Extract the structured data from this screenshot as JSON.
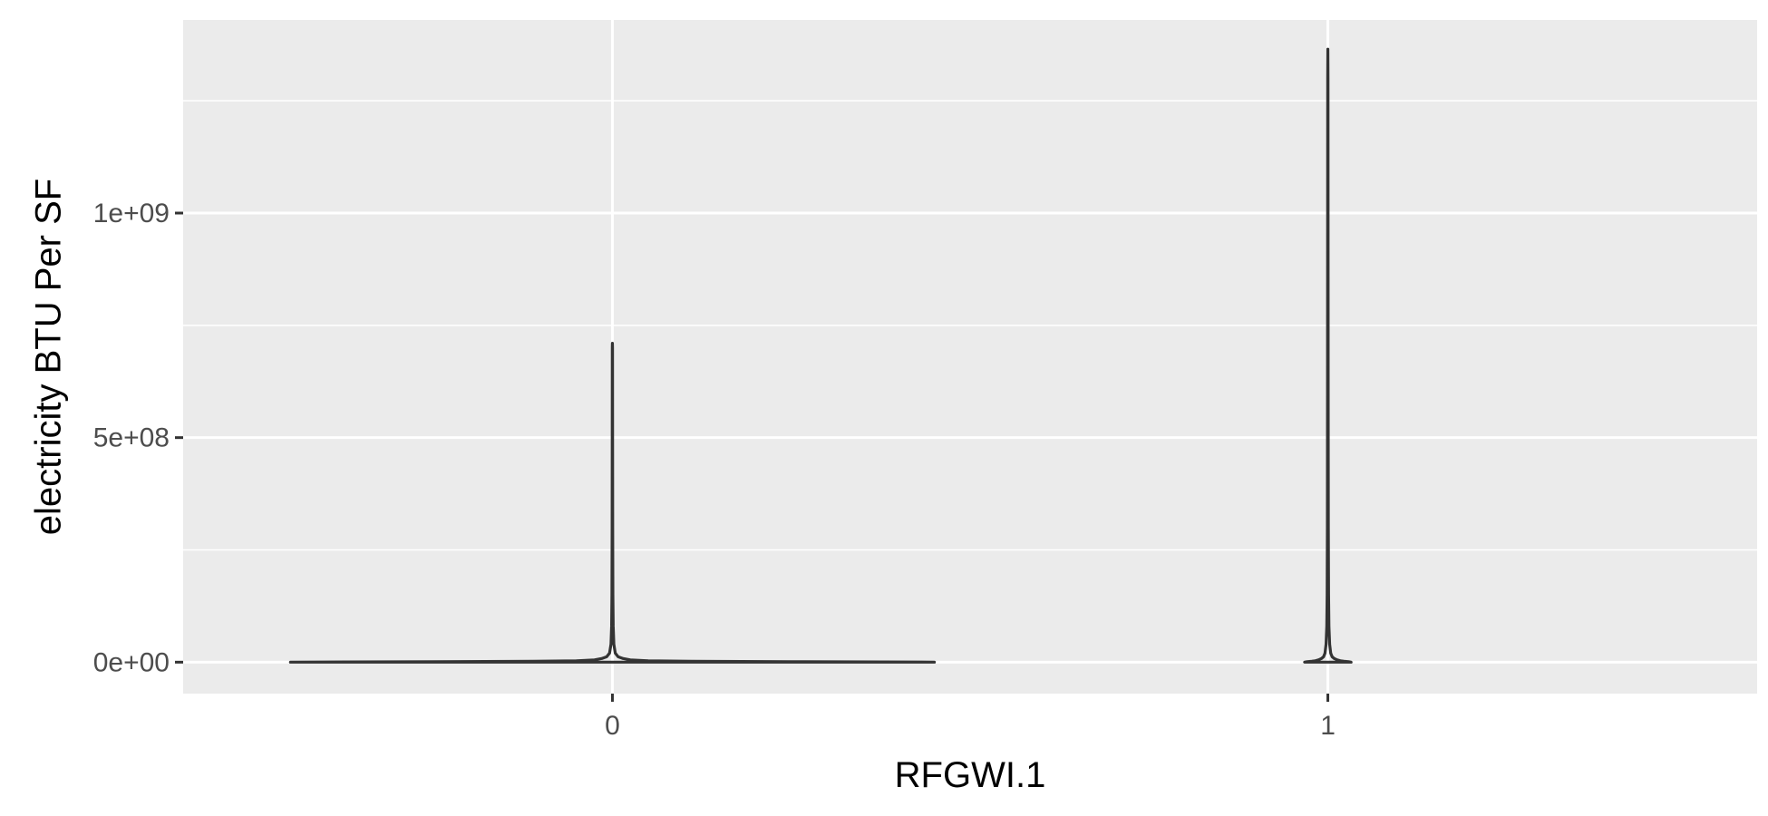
{
  "chart_data": {
    "type": "violin",
    "categories": [
      "0",
      "1"
    ],
    "xlabel": "RFGWI.1",
    "ylabel": "electricity BTU Per SF",
    "ylim": [
      -70000000,
      1430000000
    ],
    "y_ticks": [
      {
        "value": 0,
        "label": "0e+00"
      },
      {
        "value": 500000000,
        "label": "5e+08"
      },
      {
        "value": 1000000000,
        "label": "1e+09"
      }
    ],
    "y_minor_ticks": [
      250000000,
      750000000,
      1250000000
    ],
    "grid": true,
    "panel_background": "#ebebeb",
    "grid_color": "#ffffff",
    "violin_color": "#333333",
    "violins": [
      {
        "category": "0",
        "max": 710000000,
        "profile": [
          [
            0,
            0.9
          ],
          [
            1000000,
            0.5
          ],
          [
            2000000,
            0.22
          ],
          [
            3000000,
            0.1
          ],
          [
            5000000,
            0.05
          ],
          [
            8000000,
            0.03
          ],
          [
            12000000,
            0.016
          ],
          [
            20000000,
            0.008
          ],
          [
            40000000,
            0.004
          ],
          [
            80000000,
            0.0022
          ],
          [
            150000000,
            0.0013
          ],
          [
            300000000,
            0.0008
          ],
          [
            500000000,
            0.0005
          ],
          [
            700000000,
            0.0003
          ],
          [
            710000000,
            0.0
          ]
        ]
      },
      {
        "category": "1",
        "max": 1365000000,
        "profile": [
          [
            0,
            0.065
          ],
          [
            1000000,
            0.058
          ],
          [
            2000000,
            0.045
          ],
          [
            3000000,
            0.035
          ],
          [
            5000000,
            0.026
          ],
          [
            8000000,
            0.018
          ],
          [
            12000000,
            0.012
          ],
          [
            20000000,
            0.008
          ],
          [
            40000000,
            0.005
          ],
          [
            80000000,
            0.003
          ],
          [
            150000000,
            0.002
          ],
          [
            300000000,
            0.0013
          ],
          [
            600000000,
            0.0009
          ],
          [
            1000000000,
            0.0006
          ],
          [
            1300000000,
            0.0004
          ],
          [
            1365000000,
            0.0
          ]
        ]
      }
    ]
  }
}
